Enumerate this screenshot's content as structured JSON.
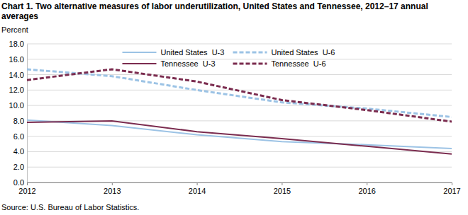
{
  "chart_data": {
    "type": "line",
    "title": "Chart 1. Two alternative measures of labor underutilization, United States and Tennessee, 2012–17 annual averages",
    "y_label": "Percent",
    "source": "Source: U.S. Bureau of Labor Statistics.",
    "x": [
      2012,
      2013,
      2014,
      2015,
      2016,
      2017
    ],
    "xlim": [
      2012,
      2017
    ],
    "xticks": [
      2012,
      2013,
      2014,
      2015,
      2016,
      2017
    ],
    "ylim": [
      0,
      18
    ],
    "yticks": [
      {
        "value": 0,
        "label": "0.0"
      },
      {
        "value": 2,
        "label": "2.0"
      },
      {
        "value": 4,
        "label": "4.0"
      },
      {
        "value": 6,
        "label": "6.0"
      },
      {
        "value": 8,
        "label": "8.0"
      },
      {
        "value": 10,
        "label": "10.0"
      },
      {
        "value": 12,
        "label": "12.0"
      },
      {
        "value": 14,
        "label": "14.0"
      },
      {
        "value": 16,
        "label": "16.0"
      },
      {
        "value": 18,
        "label": "18.0"
      }
    ],
    "grid": true,
    "legend": "top",
    "series": [
      {
        "name": "United States  U-3",
        "color": "#9cc3e5",
        "line_style": "solid",
        "values": [
          8.1,
          7.4,
          6.2,
          5.3,
          4.9,
          4.4
        ]
      },
      {
        "name": "United States  U-6",
        "color": "#9cc3e5",
        "line_style": "dashed",
        "values": [
          14.7,
          13.8,
          12.0,
          10.4,
          9.6,
          8.5
        ]
      },
      {
        "name": "Tennessee  U-3",
        "color": "#7b2c4f",
        "line_style": "solid",
        "values": [
          7.8,
          8.0,
          6.6,
          5.7,
          4.7,
          3.7
        ]
      },
      {
        "name": "Tennessee  U-6",
        "color": "#7b2c4f",
        "line_style": "dashed",
        "values": [
          13.3,
          14.7,
          13.1,
          10.7,
          9.4,
          7.9
        ]
      }
    ]
  }
}
